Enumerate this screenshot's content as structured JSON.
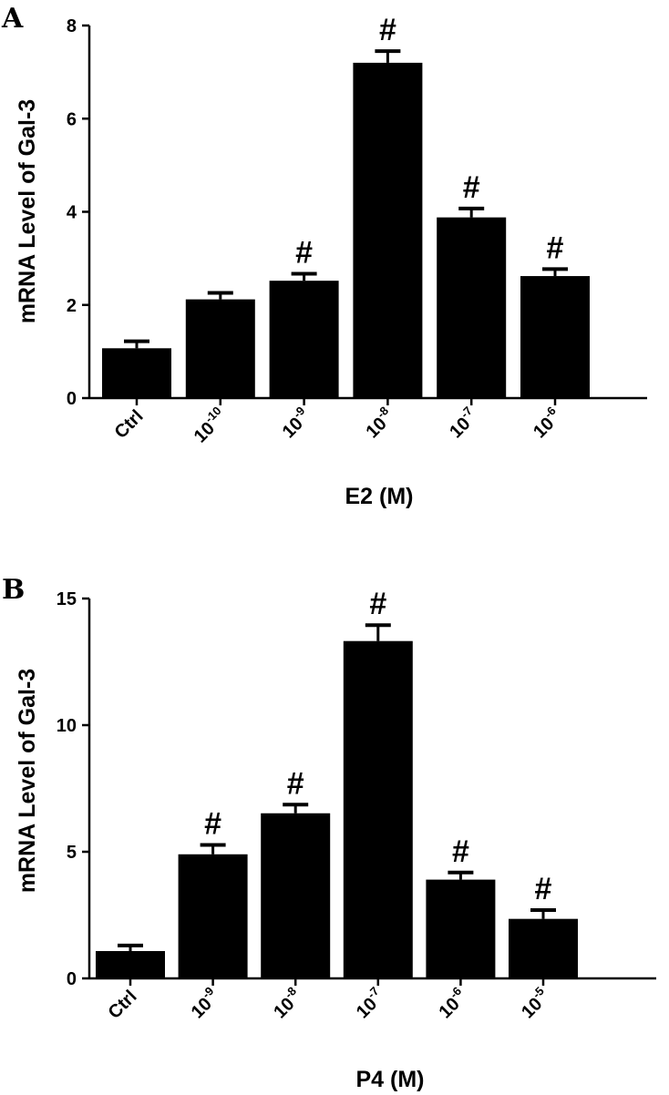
{
  "chart_data": [
    {
      "panel": "A",
      "type": "bar",
      "ylabel": "mRNA Level of Gal-3",
      "xlabel": "E2 (M)",
      "ylim": [
        0,
        8
      ],
      "yticks": [
        0,
        2,
        4,
        6,
        8
      ],
      "categories": [
        {
          "base": "Ctrl",
          "exp": ""
        },
        {
          "base": "10",
          "exp": "-10"
        },
        {
          "base": "10",
          "exp": "-9"
        },
        {
          "base": "10",
          "exp": "-8"
        },
        {
          "base": "10",
          "exp": "-7"
        },
        {
          "base": "10",
          "exp": "-6"
        }
      ],
      "values": [
        1.07,
        2.12,
        2.52,
        7.2,
        3.88,
        2.62
      ],
      "errors": [
        0.15,
        0.14,
        0.15,
        0.25,
        0.19,
        0.15
      ],
      "annotations": [
        "",
        "",
        "#",
        "#",
        "#",
        "#"
      ],
      "colors": {
        "bar": "#000000"
      }
    },
    {
      "panel": "B",
      "type": "bar",
      "ylabel": "mRNA Level of Gal-3",
      "xlabel": "P4 (M)",
      "ylim": [
        0,
        15
      ],
      "yticks": [
        0,
        5,
        10,
        15
      ],
      "categories": [
        {
          "base": "Ctrl",
          "exp": ""
        },
        {
          "base": "10",
          "exp": "-9"
        },
        {
          "base": "10",
          "exp": "-8"
        },
        {
          "base": "10",
          "exp": "-7"
        },
        {
          "base": "10",
          "exp": "-6"
        },
        {
          "base": "10",
          "exp": "-5"
        }
      ],
      "values": [
        1.08,
        4.9,
        6.52,
        13.32,
        3.9,
        2.35
      ],
      "errors": [
        0.22,
        0.37,
        0.34,
        0.63,
        0.28,
        0.35
      ],
      "annotations": [
        "",
        "#",
        "#",
        "#",
        "#",
        "#"
      ],
      "colors": {
        "bar": "#000000"
      }
    }
  ]
}
